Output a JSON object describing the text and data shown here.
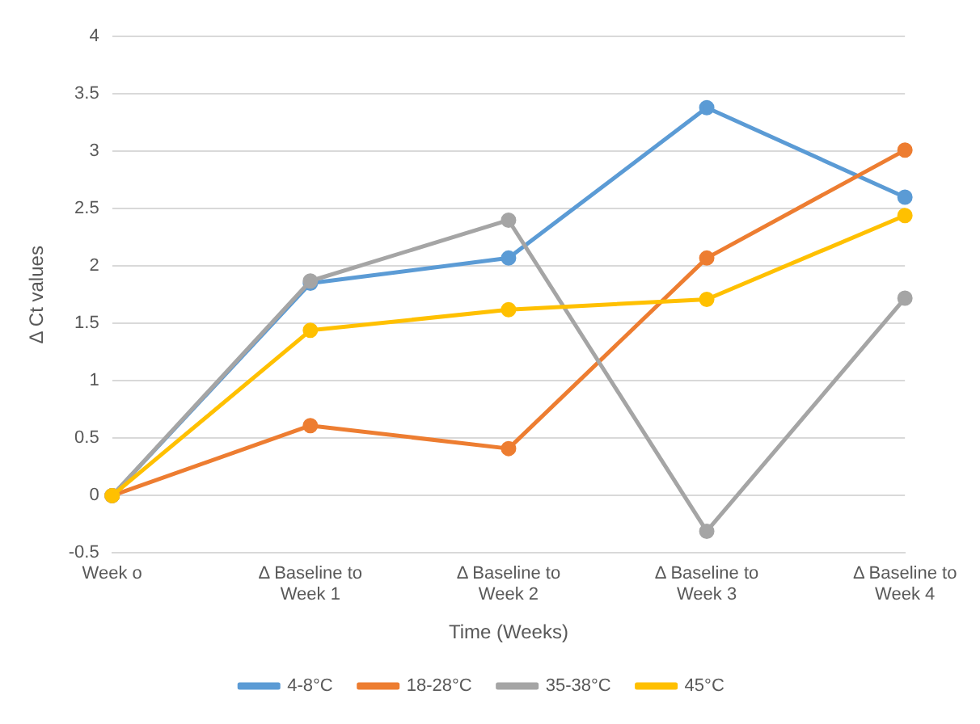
{
  "chart_data": {
    "type": "line",
    "xlabel": "Time (Weeks)",
    "ylabel": "Δ Ct values",
    "categories": [
      "Week o",
      "Δ Baseline to Week 1",
      "Δ Baseline to Week 2",
      "Δ Baseline to Week 3",
      "Δ Baseline to Week 4"
    ],
    "series": [
      {
        "name": "4-8°C",
        "color": "#5b9bd5",
        "values": [
          0,
          1.85,
          2.07,
          3.38,
          2.6
        ]
      },
      {
        "name": "18-28°C",
        "color": "#ed7d31",
        "values": [
          0,
          0.61,
          0.41,
          2.07,
          3.01
        ]
      },
      {
        "name": "35-38°C",
        "color": "#a5a5a5",
        "values": [
          0,
          1.87,
          2.4,
          -0.31,
          1.72
        ]
      },
      {
        "name": "45°C",
        "color": "#ffc000",
        "values": [
          0,
          1.44,
          1.62,
          1.71,
          2.44
        ]
      }
    ],
    "ylim": [
      -0.5,
      4
    ],
    "yticks": [
      -0.5,
      0,
      0.5,
      1,
      1.5,
      2,
      2.5,
      3,
      3.5,
      4
    ],
    "grid": "y",
    "legend": "bottom",
    "marker": "circle",
    "line_style": "solid"
  }
}
